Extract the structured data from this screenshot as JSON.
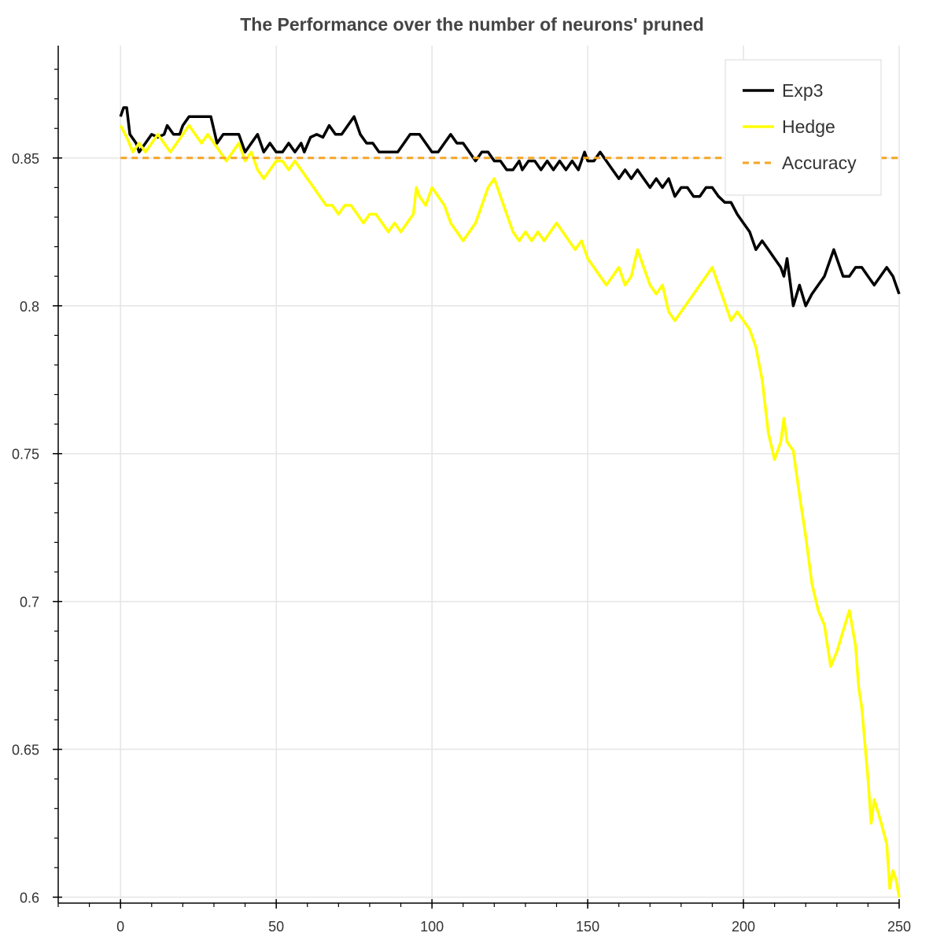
{
  "chart_data": {
    "type": "line",
    "title": "The Performance over the number of neurons' pruned",
    "xlabel": "",
    "ylabel": "",
    "xlim": [
      -20,
      250
    ],
    "ylim": [
      0.598,
      0.888
    ],
    "x_ticks": [
      0,
      50,
      100,
      150,
      200,
      250
    ],
    "x_tick_labels": [
      "0",
      "50",
      "100",
      "150",
      "200",
      "250"
    ],
    "y_ticks": [
      0.6,
      0.65,
      0.7,
      0.75,
      0.8,
      0.85
    ],
    "y_tick_labels": [
      "0.6",
      "0.65",
      "0.7",
      "0.75",
      "0.8",
      "0.85"
    ],
    "grid": true,
    "legend_position": "top-right",
    "series": [
      {
        "name": "Exp3",
        "color": "#000000",
        "dash": "solid",
        "points": [
          [
            0,
            0.864
          ],
          [
            1,
            0.867
          ],
          [
            2,
            0.867
          ],
          [
            3,
            0.858
          ],
          [
            5,
            0.855
          ],
          [
            6,
            0.852
          ],
          [
            8,
            0.855
          ],
          [
            10,
            0.858
          ],
          [
            12,
            0.857
          ],
          [
            14,
            0.858
          ],
          [
            15,
            0.861
          ],
          [
            17,
            0.858
          ],
          [
            19,
            0.858
          ],
          [
            20,
            0.861
          ],
          [
            22,
            0.864
          ],
          [
            25,
            0.864
          ],
          [
            27,
            0.864
          ],
          [
            29,
            0.864
          ],
          [
            31,
            0.855
          ],
          [
            33,
            0.858
          ],
          [
            36,
            0.858
          ],
          [
            38,
            0.858
          ],
          [
            40,
            0.852
          ],
          [
            42,
            0.855
          ],
          [
            44,
            0.858
          ],
          [
            46,
            0.852
          ],
          [
            48,
            0.855
          ],
          [
            50,
            0.852
          ],
          [
            52,
            0.852
          ],
          [
            54,
            0.855
          ],
          [
            56,
            0.852
          ],
          [
            58,
            0.855
          ],
          [
            59,
            0.852
          ],
          [
            61,
            0.857
          ],
          [
            63,
            0.858
          ],
          [
            65,
            0.857
          ],
          [
            67,
            0.861
          ],
          [
            69,
            0.858
          ],
          [
            71,
            0.858
          ],
          [
            73,
            0.861
          ],
          [
            75,
            0.864
          ],
          [
            77,
            0.858
          ],
          [
            79,
            0.855
          ],
          [
            81,
            0.855
          ],
          [
            83,
            0.852
          ],
          [
            85,
            0.852
          ],
          [
            87,
            0.852
          ],
          [
            89,
            0.852
          ],
          [
            91,
            0.855
          ],
          [
            93,
            0.858
          ],
          [
            95,
            0.858
          ],
          [
            96,
            0.858
          ],
          [
            98,
            0.855
          ],
          [
            100,
            0.852
          ],
          [
            102,
            0.852
          ],
          [
            104,
            0.855
          ],
          [
            106,
            0.858
          ],
          [
            108,
            0.855
          ],
          [
            110,
            0.855
          ],
          [
            112,
            0.852
          ],
          [
            114,
            0.849
          ],
          [
            116,
            0.852
          ],
          [
            118,
            0.852
          ],
          [
            120,
            0.849
          ],
          [
            122,
            0.849
          ],
          [
            124,
            0.846
          ],
          [
            126,
            0.846
          ],
          [
            128,
            0.849
          ],
          [
            129,
            0.846
          ],
          [
            131,
            0.849
          ],
          [
            133,
            0.849
          ],
          [
            135,
            0.846
          ],
          [
            137,
            0.849
          ],
          [
            139,
            0.846
          ],
          [
            141,
            0.849
          ],
          [
            143,
            0.846
          ],
          [
            145,
            0.849
          ],
          [
            147,
            0.846
          ],
          [
            149,
            0.852
          ],
          [
            150,
            0.849
          ],
          [
            152,
            0.849
          ],
          [
            154,
            0.852
          ],
          [
            156,
            0.849
          ],
          [
            158,
            0.846
          ],
          [
            160,
            0.843
          ],
          [
            162,
            0.846
          ],
          [
            164,
            0.843
          ],
          [
            166,
            0.846
          ],
          [
            168,
            0.843
          ],
          [
            170,
            0.84
          ],
          [
            172,
            0.843
          ],
          [
            174,
            0.84
          ],
          [
            176,
            0.843
          ],
          [
            178,
            0.837
          ],
          [
            180,
            0.84
          ],
          [
            182,
            0.84
          ],
          [
            184,
            0.837
          ],
          [
            186,
            0.837
          ],
          [
            188,
            0.84
          ],
          [
            190,
            0.84
          ],
          [
            192,
            0.837
          ],
          [
            194,
            0.835
          ],
          [
            196,
            0.835
          ],
          [
            198,
            0.831
          ],
          [
            200,
            0.828
          ],
          [
            202,
            0.825
          ],
          [
            204,
            0.819
          ],
          [
            206,
            0.822
          ],
          [
            208,
            0.819
          ],
          [
            210,
            0.816
          ],
          [
            212,
            0.813
          ],
          [
            213,
            0.81
          ],
          [
            214,
            0.816
          ],
          [
            216,
            0.8
          ],
          [
            218,
            0.807
          ],
          [
            220,
            0.8
          ],
          [
            222,
            0.804
          ],
          [
            224,
            0.807
          ],
          [
            226,
            0.81
          ],
          [
            228,
            0.816
          ],
          [
            229,
            0.819
          ],
          [
            230,
            0.816
          ],
          [
            232,
            0.81
          ],
          [
            234,
            0.81
          ],
          [
            236,
            0.813
          ],
          [
            238,
            0.813
          ],
          [
            240,
            0.81
          ],
          [
            242,
            0.807
          ],
          [
            244,
            0.81
          ],
          [
            246,
            0.813
          ],
          [
            248,
            0.81
          ],
          [
            249,
            0.807
          ],
          [
            250,
            0.804
          ]
        ]
      },
      {
        "name": "Hedge",
        "color": "#ffff00",
        "dash": "solid",
        "points": [
          [
            0,
            0.861
          ],
          [
            2,
            0.857
          ],
          [
            4,
            0.852
          ],
          [
            6,
            0.855
          ],
          [
            8,
            0.852
          ],
          [
            10,
            0.855
          ],
          [
            12,
            0.858
          ],
          [
            14,
            0.855
          ],
          [
            16,
            0.852
          ],
          [
            18,
            0.855
          ],
          [
            20,
            0.858
          ],
          [
            22,
            0.861
          ],
          [
            24,
            0.858
          ],
          [
            26,
            0.855
          ],
          [
            28,
            0.858
          ],
          [
            30,
            0.855
          ],
          [
            32,
            0.852
          ],
          [
            34,
            0.849
          ],
          [
            36,
            0.852
          ],
          [
            38,
            0.855
          ],
          [
            40,
            0.849
          ],
          [
            42,
            0.852
          ],
          [
            44,
            0.846
          ],
          [
            46,
            0.843
          ],
          [
            48,
            0.846
          ],
          [
            50,
            0.849
          ],
          [
            52,
            0.849
          ],
          [
            54,
            0.846
          ],
          [
            56,
            0.849
          ],
          [
            58,
            0.846
          ],
          [
            60,
            0.843
          ],
          [
            62,
            0.84
          ],
          [
            64,
            0.837
          ],
          [
            66,
            0.834
          ],
          [
            68,
            0.834
          ],
          [
            70,
            0.831
          ],
          [
            72,
            0.834
          ],
          [
            74,
            0.834
          ],
          [
            76,
            0.831
          ],
          [
            78,
            0.828
          ],
          [
            80,
            0.831
          ],
          [
            82,
            0.831
          ],
          [
            84,
            0.828
          ],
          [
            86,
            0.825
          ],
          [
            88,
            0.828
          ],
          [
            90,
            0.825
          ],
          [
            92,
            0.828
          ],
          [
            94,
            0.831
          ],
          [
            95,
            0.84
          ],
          [
            96,
            0.837
          ],
          [
            98,
            0.834
          ],
          [
            100,
            0.84
          ],
          [
            102,
            0.837
          ],
          [
            104,
            0.834
          ],
          [
            106,
            0.828
          ],
          [
            108,
            0.825
          ],
          [
            110,
            0.822
          ],
          [
            112,
            0.825
          ],
          [
            114,
            0.828
          ],
          [
            116,
            0.834
          ],
          [
            118,
            0.84
          ],
          [
            120,
            0.843
          ],
          [
            122,
            0.837
          ],
          [
            124,
            0.831
          ],
          [
            126,
            0.825
          ],
          [
            128,
            0.822
          ],
          [
            130,
            0.825
          ],
          [
            132,
            0.822
          ],
          [
            134,
            0.825
          ],
          [
            136,
            0.822
          ],
          [
            138,
            0.825
          ],
          [
            140,
            0.828
          ],
          [
            142,
            0.825
          ],
          [
            144,
            0.822
          ],
          [
            146,
            0.819
          ],
          [
            148,
            0.822
          ],
          [
            150,
            0.816
          ],
          [
            152,
            0.813
          ],
          [
            154,
            0.81
          ],
          [
            156,
            0.807
          ],
          [
            158,
            0.81
          ],
          [
            160,
            0.813
          ],
          [
            162,
            0.807
          ],
          [
            164,
            0.81
          ],
          [
            166,
            0.819
          ],
          [
            168,
            0.813
          ],
          [
            170,
            0.807
          ],
          [
            172,
            0.804
          ],
          [
            174,
            0.807
          ],
          [
            176,
            0.798
          ],
          [
            178,
            0.795
          ],
          [
            180,
            0.798
          ],
          [
            182,
            0.801
          ],
          [
            184,
            0.804
          ],
          [
            186,
            0.807
          ],
          [
            188,
            0.81
          ],
          [
            190,
            0.813
          ],
          [
            192,
            0.807
          ],
          [
            194,
            0.801
          ],
          [
            196,
            0.795
          ],
          [
            198,
            0.798
          ],
          [
            200,
            0.795
          ],
          [
            202,
            0.792
          ],
          [
            204,
            0.786
          ],
          [
            206,
            0.775
          ],
          [
            208,
            0.757
          ],
          [
            210,
            0.748
          ],
          [
            212,
            0.754
          ],
          [
            213,
            0.762
          ],
          [
            214,
            0.754
          ],
          [
            216,
            0.751
          ],
          [
            218,
            0.736
          ],
          [
            220,
            0.722
          ],
          [
            222,
            0.706
          ],
          [
            224,
            0.697
          ],
          [
            226,
            0.692
          ],
          [
            228,
            0.678
          ],
          [
            230,
            0.683
          ],
          [
            232,
            0.69
          ],
          [
            234,
            0.697
          ],
          [
            236,
            0.685
          ],
          [
            237,
            0.671
          ],
          [
            238,
            0.664
          ],
          [
            240,
            0.64
          ],
          [
            241,
            0.625
          ],
          [
            242,
            0.633
          ],
          [
            244,
            0.626
          ],
          [
            246,
            0.618
          ],
          [
            247,
            0.603
          ],
          [
            248,
            0.609
          ],
          [
            249,
            0.606
          ],
          [
            250,
            0.6
          ]
        ]
      },
      {
        "name": "Accuracy",
        "color": "#f5a623",
        "dash": "dashed",
        "points": [
          [
            0,
            0.85
          ],
          [
            250,
            0.85
          ]
        ]
      }
    ]
  }
}
